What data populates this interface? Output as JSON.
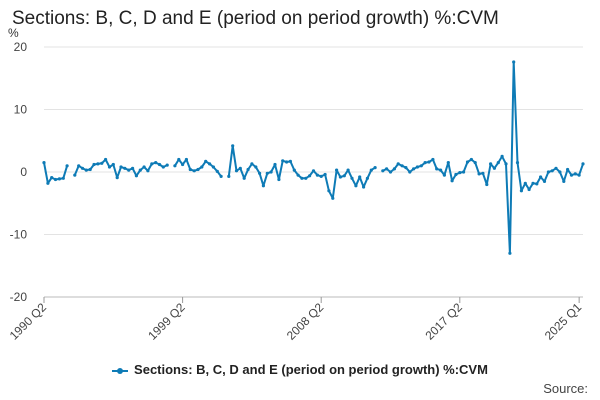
{
  "chart_data": {
    "type": "line",
    "title": "Sections: B, C, D and E (period on period growth) %:CVM",
    "ylabel": "%",
    "ylim": [
      -20,
      20
    ],
    "yticks": [
      20,
      10,
      0,
      -10,
      -20
    ],
    "x_start": "1990 Q2",
    "x_end": "2025 Q1",
    "xtick_labels": [
      "1990 Q2",
      "1999 Q2",
      "2008 Q2",
      "2017 Q2",
      "2025 Q1"
    ],
    "xtick_index": [
      0,
      36,
      72,
      108,
      139
    ],
    "grid": "horizontal",
    "legend_position": "bottom",
    "color": "#0e7bb6",
    "series": [
      {
        "name": "Sections: B, C, D and E (period on period growth) %:CVM",
        "values": [
          1.5,
          -1.8,
          -0.9,
          -1.2,
          -1.1,
          -1.0,
          1.0,
          null,
          -0.5,
          1.0,
          0.6,
          0.3,
          0.4,
          1.2,
          1.3,
          1.4,
          2.0,
          0.8,
          1.2,
          -0.9,
          0.8,
          0.6,
          0.3,
          0.6,
          -0.6,
          0.3,
          0.8,
          0.2,
          1.3,
          1.5,
          1.2,
          0.8,
          1.1,
          null,
          1.0,
          2.0,
          1.2,
          2.0,
          0.4,
          0.2,
          0.4,
          0.8,
          1.7,
          1.3,
          0.8,
          0.1,
          -0.7,
          null,
          -0.7,
          4.2,
          0.2,
          0.6,
          -1.0,
          0.4,
          1.3,
          0.8,
          -0.2,
          -2.2,
          -0.2,
          0.0,
          1.2,
          -1.2,
          1.8,
          1.6,
          1.7,
          0.3,
          -0.5,
          -1.0,
          -1.0,
          -0.6,
          0.2,
          -0.5,
          -0.7,
          -0.4,
          -3.0,
          -4.2,
          0.3,
          -0.8,
          -0.6,
          0.3,
          -1.0,
          -2.2,
          -0.8,
          -2.4,
          -1.0,
          0.3,
          0.7,
          null,
          0.2,
          0.5,
          0.0,
          0.5,
          1.3,
          1.0,
          0.7,
          0.0,
          0.5,
          0.8,
          1.0,
          1.5,
          1.6,
          2.0,
          0.5,
          0.3,
          -0.5,
          1.5,
          -1.4,
          -0.4,
          -0.1,
          0.0,
          1.6,
          2.0,
          1.5,
          -0.3,
          -0.2,
          -2.0,
          1.3,
          0.6,
          1.5,
          2.5,
          1.3,
          -13.0,
          17.6,
          1.5,
          -3.0,
          -1.8,
          -2.8,
          -1.8,
          -1.9,
          -0.8,
          -1.5,
          0.0,
          0.2,
          0.6,
          0.0,
          -1.5,
          0.4,
          -0.5,
          -0.3,
          -0.5,
          1.3
        ]
      }
    ]
  },
  "legend": {
    "label": "Sections: B, C, D and E (period on period growth) %:CVM"
  },
  "source": {
    "label": "Source:"
  }
}
